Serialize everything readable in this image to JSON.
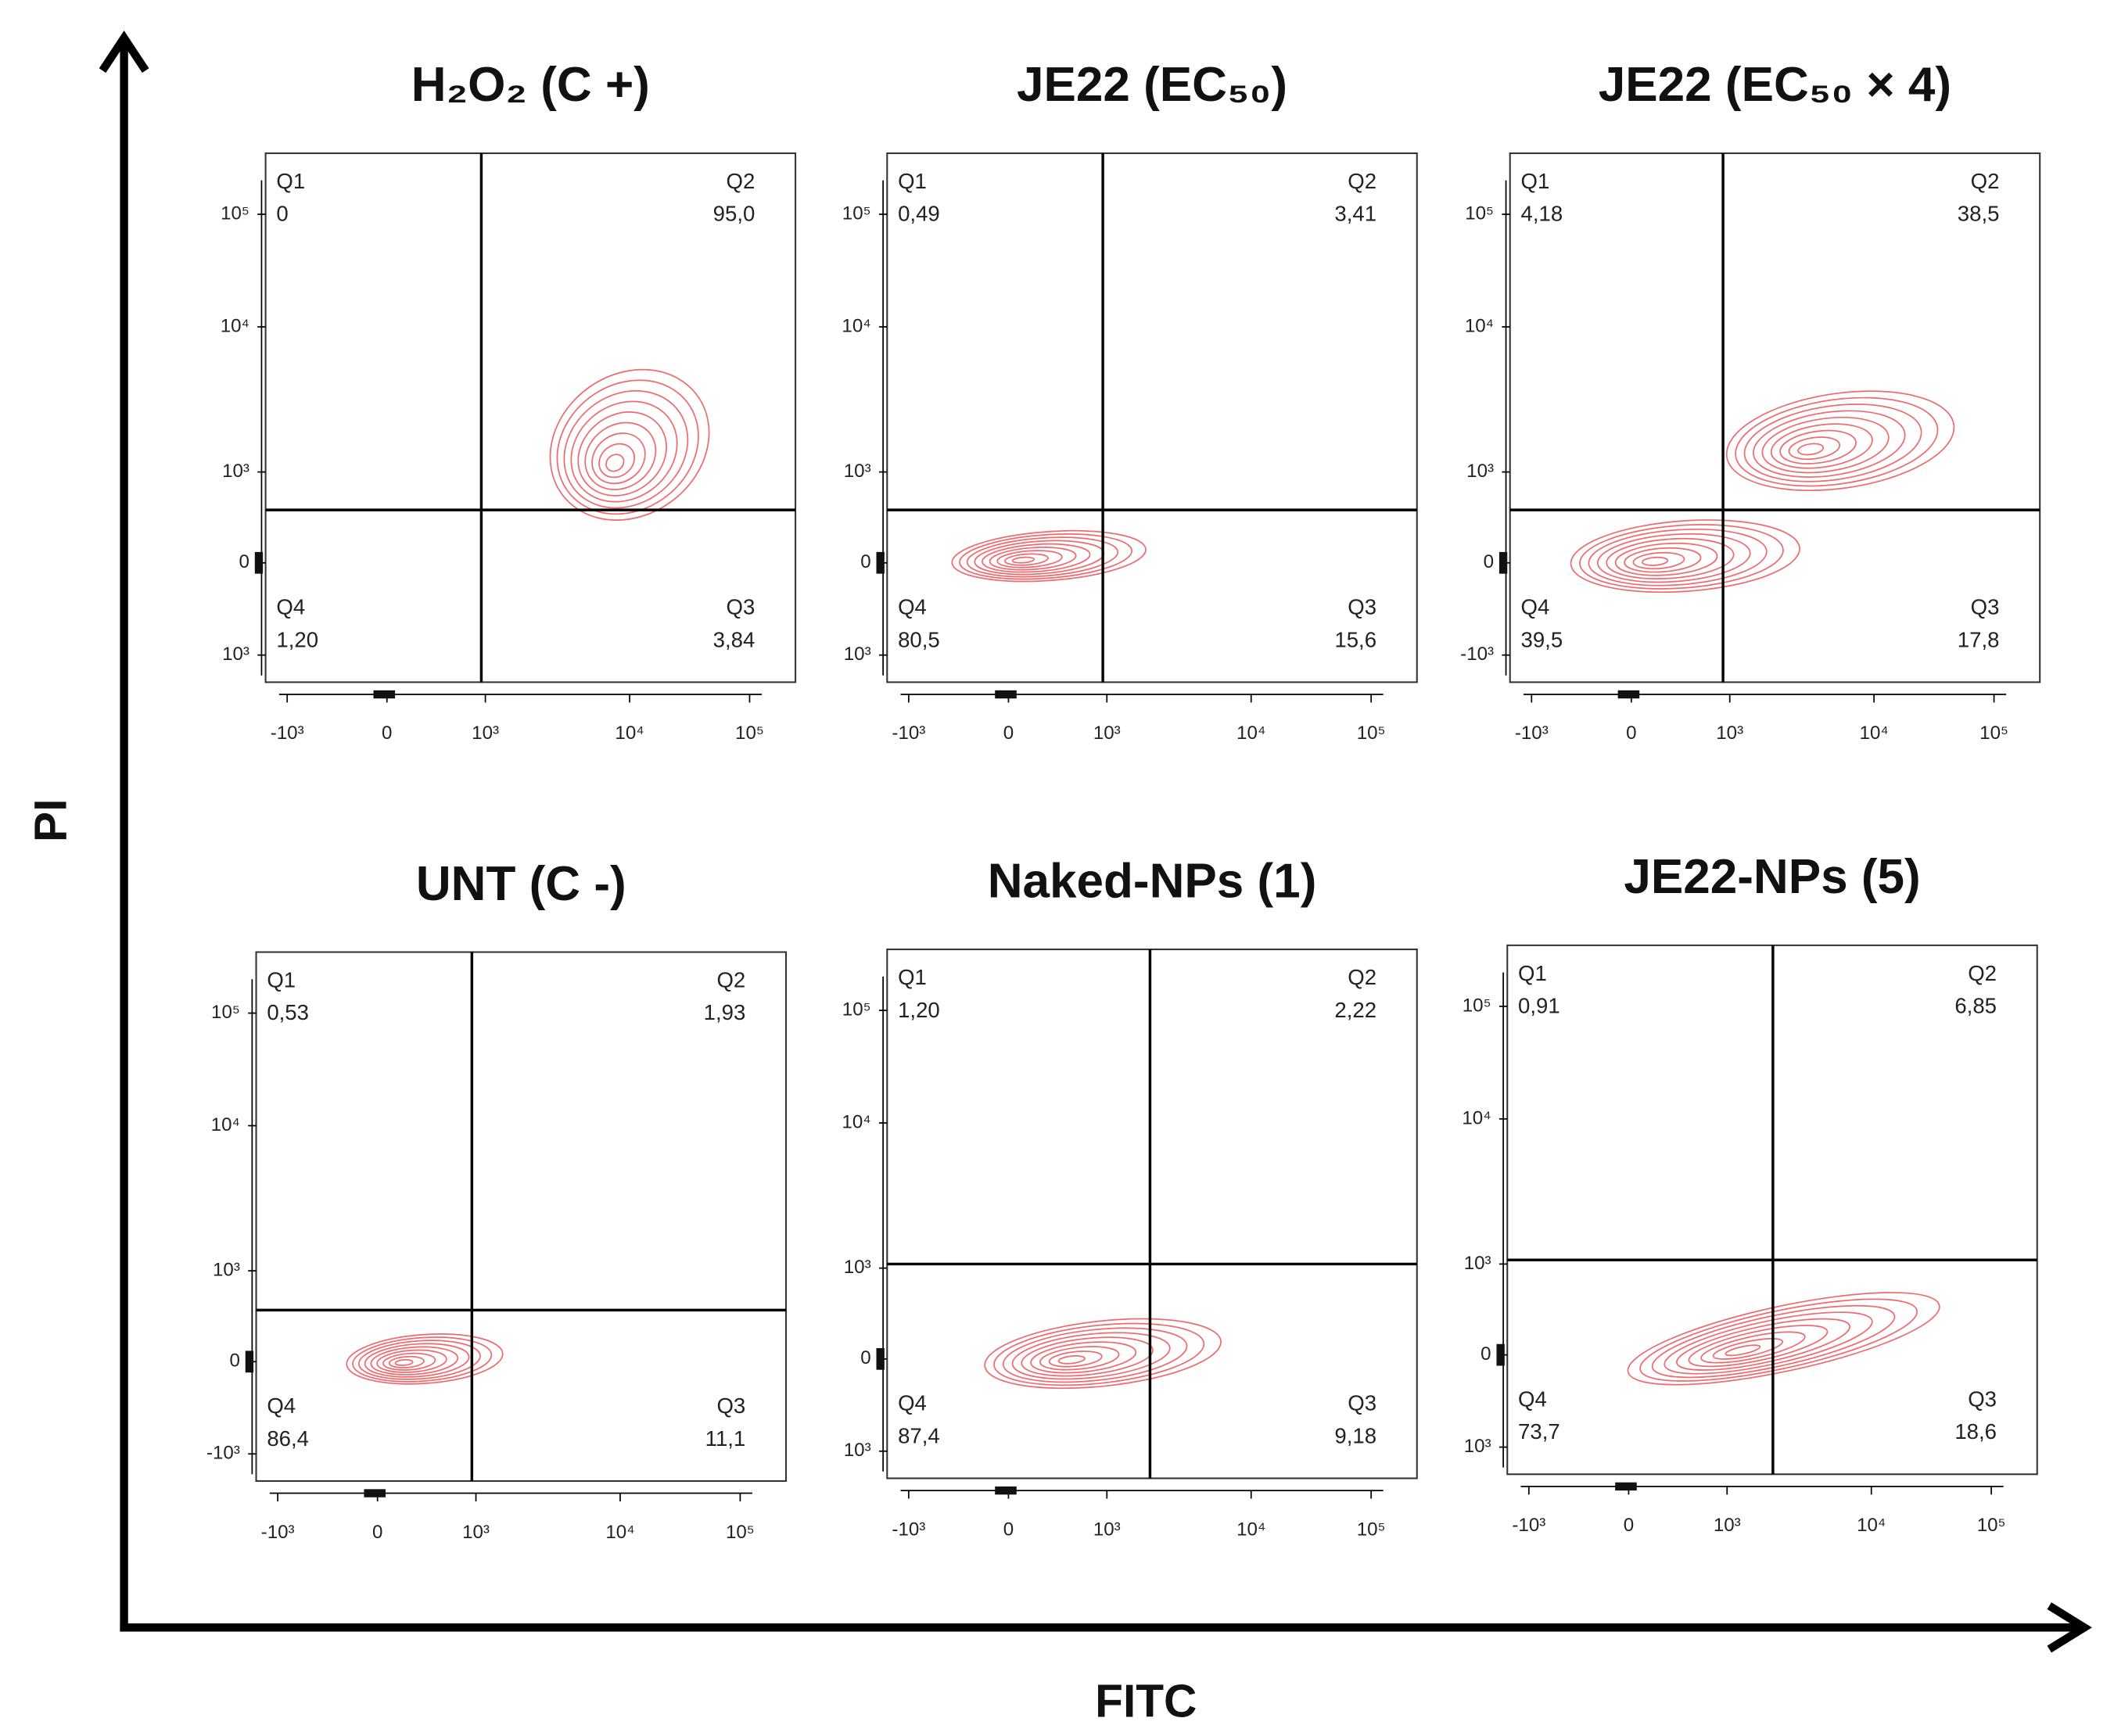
{
  "axes": {
    "x_label": "FITC",
    "y_label": "PI"
  },
  "xticks": [
    "-10³",
    "0",
    "10³",
    "10⁴",
    "10⁵"
  ],
  "panels": [
    {
      "title": "H₂O₂ (C +)",
      "yticks": [
        "10⁵",
        "10⁴",
        "10³",
        "0",
        "10³"
      ],
      "quadrants": [
        {
          "name": "Q1",
          "value": "0"
        },
        {
          "name": "Q2",
          "value": "95,0"
        },
        {
          "name": "Q4",
          "value": "1,20"
        },
        {
          "name": "Q3",
          "value": "3,84"
        }
      ]
    },
    {
      "title": "JE22 (EC₅₀)",
      "yticks": [
        "10⁵",
        "10⁴",
        "10³",
        "0",
        "10³"
      ],
      "quadrants": [
        {
          "name": "Q1",
          "value": "0,49"
        },
        {
          "name": "Q2",
          "value": "3,41"
        },
        {
          "name": "Q4",
          "value": "80,5"
        },
        {
          "name": "Q3",
          "value": "15,6"
        }
      ]
    },
    {
      "title": "JE22 (EC₅₀ × 4)",
      "yticks": [
        "10⁵",
        "10⁴",
        "10³",
        "0",
        "-10³"
      ],
      "quadrants": [
        {
          "name": "Q1",
          "value": "4,18"
        },
        {
          "name": "Q2",
          "value": "38,5"
        },
        {
          "name": "Q4",
          "value": "39,5"
        },
        {
          "name": "Q3",
          "value": "17,8"
        }
      ]
    },
    {
      "title": "UNT (C -)",
      "yticks": [
        "10⁵",
        "10⁴",
        "10³",
        "0",
        "-10³"
      ],
      "quadrants": [
        {
          "name": "Q1",
          "value": "0,53"
        },
        {
          "name": "Q2",
          "value": "1,93"
        },
        {
          "name": "Q4",
          "value": "86,4"
        },
        {
          "name": "Q3",
          "value": "11,1"
        }
      ]
    },
    {
      "title": "Naked-NPs (1)",
      "yticks": [
        "10⁵",
        "10⁴",
        "10³",
        "0",
        "10³"
      ],
      "quadrants": [
        {
          "name": "Q1",
          "value": "1,20"
        },
        {
          "name": "Q2",
          "value": "2,22"
        },
        {
          "name": "Q4",
          "value": "87,4"
        },
        {
          "name": "Q3",
          "value": "9,18"
        }
      ]
    },
    {
      "title": "JE22-NPs (5)",
      "yticks": [
        "10⁵",
        "10⁴",
        "10³",
        "0",
        "10³"
      ],
      "quadrants": [
        {
          "name": "Q1",
          "value": "0,91"
        },
        {
          "name": "Q2",
          "value": "6,85"
        },
        {
          "name": "Q4",
          "value": "73,7"
        },
        {
          "name": "Q3",
          "value": "18,6"
        }
      ]
    }
  ]
}
